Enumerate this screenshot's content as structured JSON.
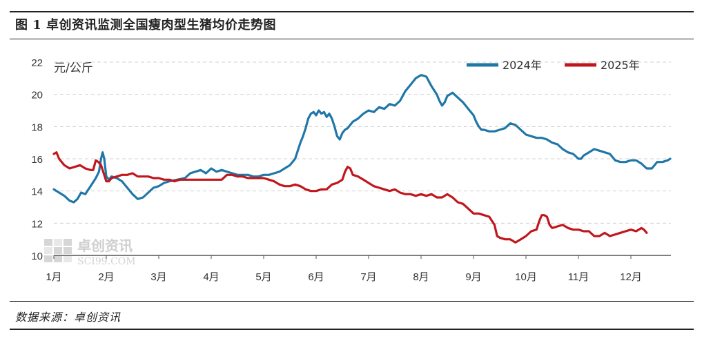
{
  "header": {
    "title": "图 1  卓创资讯监测全国瘦肉型生猪均价走势图"
  },
  "footer": {
    "source": "数据来源：卓创资讯"
  },
  "watermark": {
    "name": "卓创资讯",
    "sub": "SCI99.COM"
  },
  "colors": {
    "series_2024": "#1f77a8",
    "series_2025": "#c0171d",
    "grid": "#d0d0d0"
  },
  "chart_data": {
    "type": "line",
    "title": "",
    "unit_label": "元/公斤",
    "xlabel": "",
    "ylabel": "",
    "ylim": [
      10,
      22
    ],
    "y_ticks": [
      10,
      12,
      14,
      16,
      18,
      20,
      22
    ],
    "x_ticks": [
      "1月",
      "2月",
      "3月",
      "4月",
      "5月",
      "6月",
      "7月",
      "8月",
      "9月",
      "10月",
      "11月",
      "12月"
    ],
    "grid": "horizontal-dashed",
    "legend_position": "top-right",
    "series": [
      {
        "name": "2024年",
        "color": "#1f77a8",
        "points": [
          [
            0.0,
            14.1
          ],
          [
            0.1,
            13.9
          ],
          [
            0.2,
            13.7
          ],
          [
            0.3,
            13.4
          ],
          [
            0.38,
            13.3
          ],
          [
            0.45,
            13.5
          ],
          [
            0.52,
            13.9
          ],
          [
            0.6,
            13.8
          ],
          [
            0.7,
            14.3
          ],
          [
            0.8,
            14.8
          ],
          [
            0.86,
            15.2
          ],
          [
            0.9,
            16.0
          ],
          [
            0.93,
            16.4
          ],
          [
            0.96,
            16.0
          ],
          [
            1.0,
            14.9
          ],
          [
            1.05,
            14.7
          ],
          [
            1.1,
            14.9
          ],
          [
            1.2,
            14.8
          ],
          [
            1.3,
            14.6
          ],
          [
            1.4,
            14.2
          ],
          [
            1.5,
            13.8
          ],
          [
            1.6,
            13.5
          ],
          [
            1.7,
            13.6
          ],
          [
            1.8,
            13.9
          ],
          [
            1.9,
            14.2
          ],
          [
            2.0,
            14.3
          ],
          [
            2.1,
            14.5
          ],
          [
            2.2,
            14.6
          ],
          [
            2.35,
            14.7
          ],
          [
            2.5,
            14.8
          ],
          [
            2.6,
            15.1
          ],
          [
            2.7,
            15.2
          ],
          [
            2.8,
            15.3
          ],
          [
            2.9,
            15.1
          ],
          [
            3.0,
            15.4
          ],
          [
            3.1,
            15.2
          ],
          [
            3.2,
            15.3
          ],
          [
            3.3,
            15.2
          ],
          [
            3.4,
            15.1
          ],
          [
            3.5,
            15.0
          ],
          [
            3.6,
            15.0
          ],
          [
            3.7,
            15.0
          ],
          [
            3.8,
            14.9
          ],
          [
            3.9,
            14.9
          ],
          [
            4.0,
            15.0
          ],
          [
            4.1,
            15.0
          ],
          [
            4.2,
            15.1
          ],
          [
            4.3,
            15.2
          ],
          [
            4.4,
            15.4
          ],
          [
            4.5,
            15.6
          ],
          [
            4.6,
            16.0
          ],
          [
            4.65,
            16.5
          ],
          [
            4.7,
            17.0
          ],
          [
            4.75,
            17.4
          ],
          [
            4.8,
            17.9
          ],
          [
            4.85,
            18.5
          ],
          [
            4.9,
            18.8
          ],
          [
            4.95,
            18.9
          ],
          [
            5.0,
            18.7
          ],
          [
            5.05,
            19.0
          ],
          [
            5.1,
            18.8
          ],
          [
            5.15,
            18.9
          ],
          [
            5.2,
            18.6
          ],
          [
            5.25,
            18.8
          ],
          [
            5.3,
            18.5
          ],
          [
            5.35,
            18.0
          ],
          [
            5.4,
            17.4
          ],
          [
            5.45,
            17.2
          ],
          [
            5.5,
            17.6
          ],
          [
            5.55,
            17.8
          ],
          [
            5.6,
            17.9
          ],
          [
            5.65,
            18.1
          ],
          [
            5.7,
            18.3
          ],
          [
            5.8,
            18.5
          ],
          [
            5.9,
            18.8
          ],
          [
            6.0,
            19.0
          ],
          [
            6.1,
            18.9
          ],
          [
            6.2,
            19.2
          ],
          [
            6.3,
            19.1
          ],
          [
            6.4,
            19.4
          ],
          [
            6.5,
            19.3
          ],
          [
            6.6,
            19.6
          ],
          [
            6.7,
            20.2
          ],
          [
            6.8,
            20.6
          ],
          [
            6.9,
            21.0
          ],
          [
            7.0,
            21.2
          ],
          [
            7.1,
            21.1
          ],
          [
            7.15,
            20.8
          ],
          [
            7.2,
            20.5
          ],
          [
            7.3,
            20.0
          ],
          [
            7.35,
            19.6
          ],
          [
            7.4,
            19.3
          ],
          [
            7.45,
            19.5
          ],
          [
            7.5,
            19.9
          ],
          [
            7.55,
            20.0
          ],
          [
            7.6,
            20.1
          ],
          [
            7.7,
            19.8
          ],
          [
            7.8,
            19.5
          ],
          [
            7.9,
            19.1
          ],
          [
            8.0,
            18.7
          ],
          [
            8.05,
            18.3
          ],
          [
            8.1,
            18.0
          ],
          [
            8.15,
            17.8
          ],
          [
            8.2,
            17.8
          ],
          [
            8.3,
            17.7
          ],
          [
            8.4,
            17.7
          ],
          [
            8.5,
            17.8
          ],
          [
            8.6,
            17.9
          ],
          [
            8.7,
            18.2
          ],
          [
            8.8,
            18.1
          ],
          [
            8.9,
            17.8
          ],
          [
            9.0,
            17.5
          ],
          [
            9.1,
            17.4
          ],
          [
            9.2,
            17.3
          ],
          [
            9.3,
            17.3
          ],
          [
            9.4,
            17.2
          ],
          [
            9.5,
            17.0
          ],
          [
            9.6,
            16.9
          ],
          [
            9.7,
            16.6
          ],
          [
            9.8,
            16.4
          ],
          [
            9.9,
            16.3
          ],
          [
            10.0,
            16.0
          ],
          [
            10.05,
            16.0
          ],
          [
            10.1,
            16.2
          ],
          [
            10.2,
            16.4
          ],
          [
            10.3,
            16.6
          ],
          [
            10.4,
            16.5
          ],
          [
            10.5,
            16.4
          ],
          [
            10.6,
            16.3
          ],
          [
            10.7,
            15.9
          ],
          [
            10.8,
            15.8
          ],
          [
            10.9,
            15.8
          ],
          [
            11.0,
            15.9
          ],
          [
            11.1,
            15.9
          ],
          [
            11.2,
            15.7
          ],
          [
            11.3,
            15.4
          ],
          [
            11.4,
            15.4
          ],
          [
            11.5,
            15.8
          ],
          [
            11.6,
            15.8
          ],
          [
            11.7,
            15.9
          ],
          [
            11.75,
            16.0
          ]
        ]
      },
      {
        "name": "2025年",
        "color": "#c0171d",
        "points": [
          [
            0.0,
            16.3
          ],
          [
            0.05,
            16.4
          ],
          [
            0.1,
            16.0
          ],
          [
            0.15,
            15.8
          ],
          [
            0.2,
            15.6
          ],
          [
            0.3,
            15.4
          ],
          [
            0.4,
            15.5
          ],
          [
            0.5,
            15.6
          ],
          [
            0.6,
            15.4
          ],
          [
            0.7,
            15.3
          ],
          [
            0.75,
            15.3
          ],
          [
            0.8,
            15.9
          ],
          [
            0.85,
            15.8
          ],
          [
            0.9,
            15.6
          ],
          [
            0.95,
            15.1
          ],
          [
            1.0,
            14.6
          ],
          [
            1.05,
            14.6
          ],
          [
            1.1,
            14.8
          ],
          [
            1.2,
            14.9
          ],
          [
            1.3,
            15.0
          ],
          [
            1.4,
            15.0
          ],
          [
            1.5,
            15.1
          ],
          [
            1.6,
            14.9
          ],
          [
            1.7,
            14.9
          ],
          [
            1.8,
            14.9
          ],
          [
            1.9,
            14.8
          ],
          [
            2.0,
            14.8
          ],
          [
            2.1,
            14.7
          ],
          [
            2.2,
            14.7
          ],
          [
            2.3,
            14.6
          ],
          [
            2.4,
            14.7
          ],
          [
            2.5,
            14.7
          ],
          [
            2.6,
            14.7
          ],
          [
            2.7,
            14.7
          ],
          [
            2.8,
            14.7
          ],
          [
            2.9,
            14.7
          ],
          [
            3.0,
            14.7
          ],
          [
            3.1,
            14.7
          ],
          [
            3.2,
            14.7
          ],
          [
            3.3,
            15.0
          ],
          [
            3.4,
            15.0
          ],
          [
            3.5,
            14.9
          ],
          [
            3.6,
            14.9
          ],
          [
            3.7,
            14.8
          ],
          [
            3.8,
            14.8
          ],
          [
            3.9,
            14.8
          ],
          [
            4.0,
            14.8
          ],
          [
            4.1,
            14.7
          ],
          [
            4.2,
            14.6
          ],
          [
            4.3,
            14.4
          ],
          [
            4.4,
            14.3
          ],
          [
            4.5,
            14.3
          ],
          [
            4.6,
            14.4
          ],
          [
            4.7,
            14.3
          ],
          [
            4.8,
            14.1
          ],
          [
            4.9,
            14.0
          ],
          [
            5.0,
            14.0
          ],
          [
            5.1,
            14.1
          ],
          [
            5.2,
            14.1
          ],
          [
            5.3,
            14.4
          ],
          [
            5.4,
            14.5
          ],
          [
            5.5,
            14.7
          ],
          [
            5.55,
            15.2
          ],
          [
            5.6,
            15.5
          ],
          [
            5.65,
            15.4
          ],
          [
            5.7,
            15.0
          ],
          [
            5.8,
            14.9
          ],
          [
            5.9,
            14.7
          ],
          [
            6.0,
            14.5
          ],
          [
            6.1,
            14.3
          ],
          [
            6.2,
            14.2
          ],
          [
            6.3,
            14.1
          ],
          [
            6.4,
            14.0
          ],
          [
            6.5,
            14.1
          ],
          [
            6.6,
            13.9
          ],
          [
            6.7,
            13.8
          ],
          [
            6.8,
            13.8
          ],
          [
            6.9,
            13.7
          ],
          [
            7.0,
            13.8
          ],
          [
            7.1,
            13.7
          ],
          [
            7.2,
            13.8
          ],
          [
            7.3,
            13.6
          ],
          [
            7.4,
            13.6
          ],
          [
            7.5,
            13.8
          ],
          [
            7.6,
            13.6
          ],
          [
            7.7,
            13.3
          ],
          [
            7.8,
            13.2
          ],
          [
            7.9,
            12.9
          ],
          [
            8.0,
            12.6
          ],
          [
            8.1,
            12.6
          ],
          [
            8.2,
            12.5
          ],
          [
            8.3,
            12.4
          ],
          [
            8.4,
            11.9
          ],
          [
            8.45,
            11.2
          ],
          [
            8.5,
            11.1
          ],
          [
            8.6,
            11.0
          ],
          [
            8.7,
            11.0
          ],
          [
            8.8,
            10.8
          ],
          [
            8.9,
            11.0
          ],
          [
            9.0,
            11.2
          ],
          [
            9.1,
            11.5
          ],
          [
            9.2,
            11.6
          ],
          [
            9.25,
            12.1
          ],
          [
            9.3,
            12.5
          ],
          [
            9.35,
            12.5
          ],
          [
            9.4,
            12.4
          ],
          [
            9.45,
            11.9
          ],
          [
            9.5,
            11.7
          ],
          [
            9.6,
            11.8
          ],
          [
            9.7,
            11.9
          ],
          [
            9.8,
            11.7
          ],
          [
            9.9,
            11.6
          ],
          [
            10.0,
            11.6
          ],
          [
            10.1,
            11.5
          ],
          [
            10.2,
            11.5
          ],
          [
            10.3,
            11.2
          ],
          [
            10.4,
            11.2
          ],
          [
            10.5,
            11.4
          ],
          [
            10.6,
            11.2
          ],
          [
            10.7,
            11.3
          ],
          [
            10.8,
            11.4
          ],
          [
            10.9,
            11.5
          ],
          [
            11.0,
            11.6
          ],
          [
            11.1,
            11.5
          ],
          [
            11.2,
            11.7
          ],
          [
            11.25,
            11.6
          ],
          [
            11.3,
            11.4
          ]
        ]
      }
    ]
  }
}
